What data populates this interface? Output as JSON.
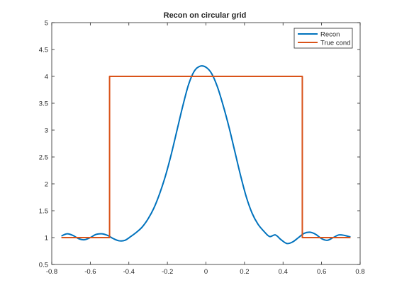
{
  "chart_data": {
    "type": "line",
    "title": "Recon on circular grid",
    "xlabel": "",
    "ylabel": "",
    "xlim": [
      -0.8,
      0.8
    ],
    "ylim": [
      0.5,
      5
    ],
    "xticks": [
      -0.8,
      -0.6,
      -0.4,
      -0.2,
      0,
      0.2,
      0.4,
      0.6,
      0.8
    ],
    "xtick_labels": [
      "-0.8",
      "-0.6",
      "-0.4",
      "-0.2",
      "0",
      "0.2",
      "0.4",
      "0.6",
      "0.8"
    ],
    "yticks": [
      0.5,
      1,
      1.5,
      2,
      2.5,
      3,
      3.5,
      4,
      4.5,
      5
    ],
    "ytick_labels": [
      "0.5",
      "1",
      "1.5",
      "2",
      "2.5",
      "3",
      "3.5",
      "4",
      "4.5",
      "5"
    ],
    "grid": false,
    "legend_position": "top-right",
    "series": [
      {
        "name": "Recon",
        "color": "#0072BD",
        "x": [
          -0.75,
          -0.72,
          -0.69,
          -0.66,
          -0.63,
          -0.6,
          -0.57,
          -0.54,
          -0.51,
          -0.48,
          -0.45,
          -0.42,
          -0.39,
          -0.36,
          -0.33,
          -0.3,
          -0.27,
          -0.24,
          -0.21,
          -0.18,
          -0.15,
          -0.12,
          -0.09,
          -0.06,
          -0.03,
          0.0,
          0.03,
          0.06,
          0.09,
          0.12,
          0.15,
          0.18,
          0.21,
          0.24,
          0.27,
          0.3,
          0.33,
          0.36,
          0.39,
          0.42,
          0.45,
          0.48,
          0.51,
          0.54,
          0.57,
          0.6,
          0.63,
          0.66,
          0.69,
          0.72,
          0.75
        ],
        "y": [
          1.03,
          1.07,
          1.04,
          0.98,
          0.96,
          1.0,
          1.06,
          1.07,
          1.04,
          0.98,
          0.94,
          0.95,
          1.02,
          1.1,
          1.2,
          1.35,
          1.55,
          1.82,
          2.15,
          2.55,
          3.0,
          3.45,
          3.85,
          4.1,
          4.19,
          4.17,
          4.05,
          3.8,
          3.45,
          3.05,
          2.6,
          2.15,
          1.75,
          1.45,
          1.25,
          1.12,
          1.02,
          1.05,
          0.96,
          0.89,
          0.92,
          1.0,
          1.08,
          1.1,
          1.06,
          0.98,
          0.95,
          1.0,
          1.05,
          1.04,
          1.01
        ]
      },
      {
        "name": "True cond",
        "color": "#D95319",
        "x": [
          -0.75,
          -0.5,
          -0.5,
          0.5,
          0.5,
          0.75
        ],
        "y": [
          1,
          1,
          4,
          4,
          1,
          1
        ]
      }
    ]
  }
}
